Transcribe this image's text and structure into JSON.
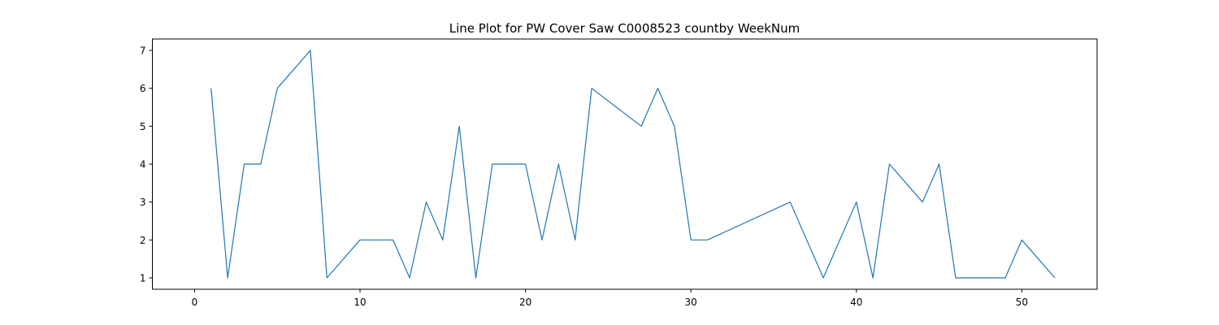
{
  "chart_data": {
    "type": "line",
    "title": "Line Plot for PW Cover Saw C0008523 countby WeekNum",
    "xlabel": "",
    "ylabel": "",
    "xlim": [
      -2.55,
      54.55
    ],
    "ylim": [
      0.7,
      7.3
    ],
    "xticks": [
      0,
      10,
      20,
      30,
      40,
      50
    ],
    "yticks": [
      1,
      2,
      3,
      4,
      5,
      6,
      7
    ],
    "grid": false,
    "line_color": "#1f77b4",
    "series": [
      {
        "x": [
          1,
          2,
          3,
          4,
          5,
          7,
          8,
          10,
          12,
          13,
          14,
          15,
          16,
          17,
          18,
          20,
          21,
          22,
          23,
          24,
          27,
          28,
          29,
          30,
          31,
          36,
          38,
          40,
          41,
          42,
          44,
          45,
          46,
          49,
          50,
          52
        ],
        "y": [
          6,
          1,
          4,
          4,
          6,
          7,
          1,
          2,
          2,
          1,
          3,
          2,
          5,
          1,
          4,
          4,
          2,
          4,
          2,
          6,
          5,
          6,
          5,
          2,
          2,
          3,
          1,
          3,
          1,
          4,
          3,
          4,
          1,
          1,
          2,
          1
        ]
      }
    ]
  }
}
